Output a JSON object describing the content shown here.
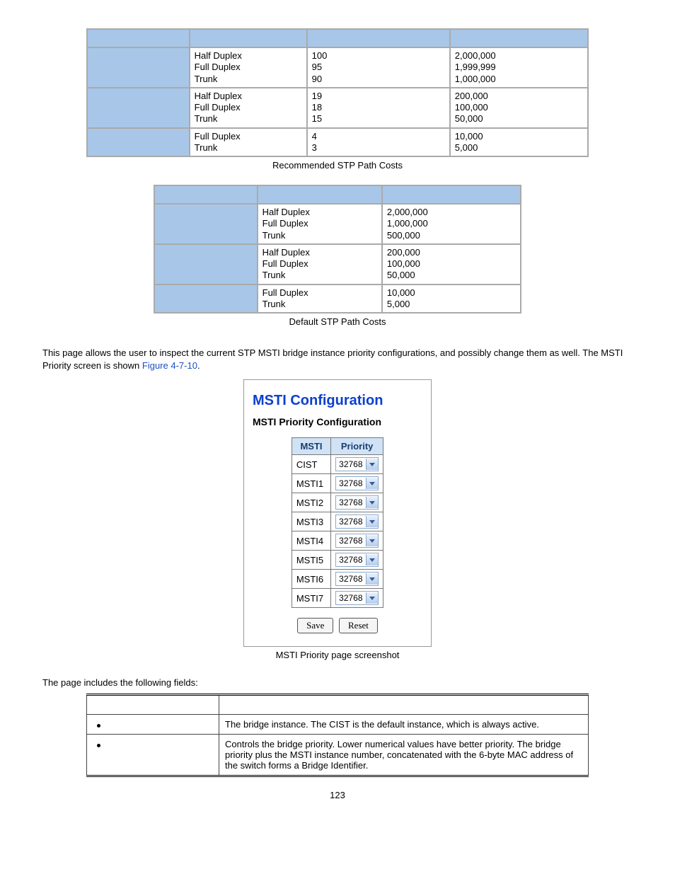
{
  "table1": {
    "rows": [
      {
        "duplex": "Half Duplex\nFull Duplex\nTrunk",
        "col3": "100\n95\n90",
        "col4": "2,000,000\n1,999,999\n1,000,000"
      },
      {
        "duplex": "Half Duplex\nFull Duplex\nTrunk",
        "col3": "19\n18\n15",
        "col4": "200,000\n100,000\n50,000"
      },
      {
        "duplex": "Full Duplex\nTrunk",
        "col3": "4\n3",
        "col4": "10,000\n5,000"
      }
    ],
    "caption": "Recommended STP Path Costs"
  },
  "table2": {
    "rows": [
      {
        "duplex": "Half Duplex\nFull Duplex\nTrunk",
        "cost": "2,000,000\n1,000,000\n500,000"
      },
      {
        "duplex": "Half Duplex\nFull Duplex\nTrunk",
        "cost": "200,000\n100,000\n50,000"
      },
      {
        "duplex": "Full Duplex\nTrunk",
        "cost": "10,000\n5,000"
      }
    ],
    "caption": "Default STP Path Costs"
  },
  "intro": {
    "text_a": "This page allows the user to inspect the current STP MSTI bridge instance priority configurations, and possibly change them as well. The MSTI Priority screen is shown ",
    "link": "Figure 4-7-10",
    "text_b": "."
  },
  "ui": {
    "title": "MSTI Configuration",
    "subtitle": "MSTI Priority Configuration",
    "headers": {
      "msti": "MSTI",
      "priority": "Priority"
    },
    "rows": [
      {
        "name": "CIST",
        "val": "32768"
      },
      {
        "name": "MSTI1",
        "val": "32768"
      },
      {
        "name": "MSTI2",
        "val": "32768"
      },
      {
        "name": "MSTI3",
        "val": "32768"
      },
      {
        "name": "MSTI4",
        "val": "32768"
      },
      {
        "name": "MSTI5",
        "val": "32768"
      },
      {
        "name": "MSTI6",
        "val": "32768"
      },
      {
        "name": "MSTI7",
        "val": "32768"
      }
    ],
    "save": "Save",
    "reset": "Reset",
    "caption": "MSTI Priority page screenshot"
  },
  "fields_intro": "The page includes the following fields:",
  "fields": {
    "r1": "The bridge instance. The CIST is the default instance, which is always active.",
    "r2": "Controls the bridge priority. Lower numerical values have better priority. The bridge priority plus the MSTI instance number, concatenated with the 6-byte MAC address of the switch forms a Bridge Identifier."
  },
  "page_number": "123",
  "colors": {
    "header_bg": "#a8c7e8",
    "link": "#1a4fc7",
    "ui_title": "#0b3fcf"
  }
}
